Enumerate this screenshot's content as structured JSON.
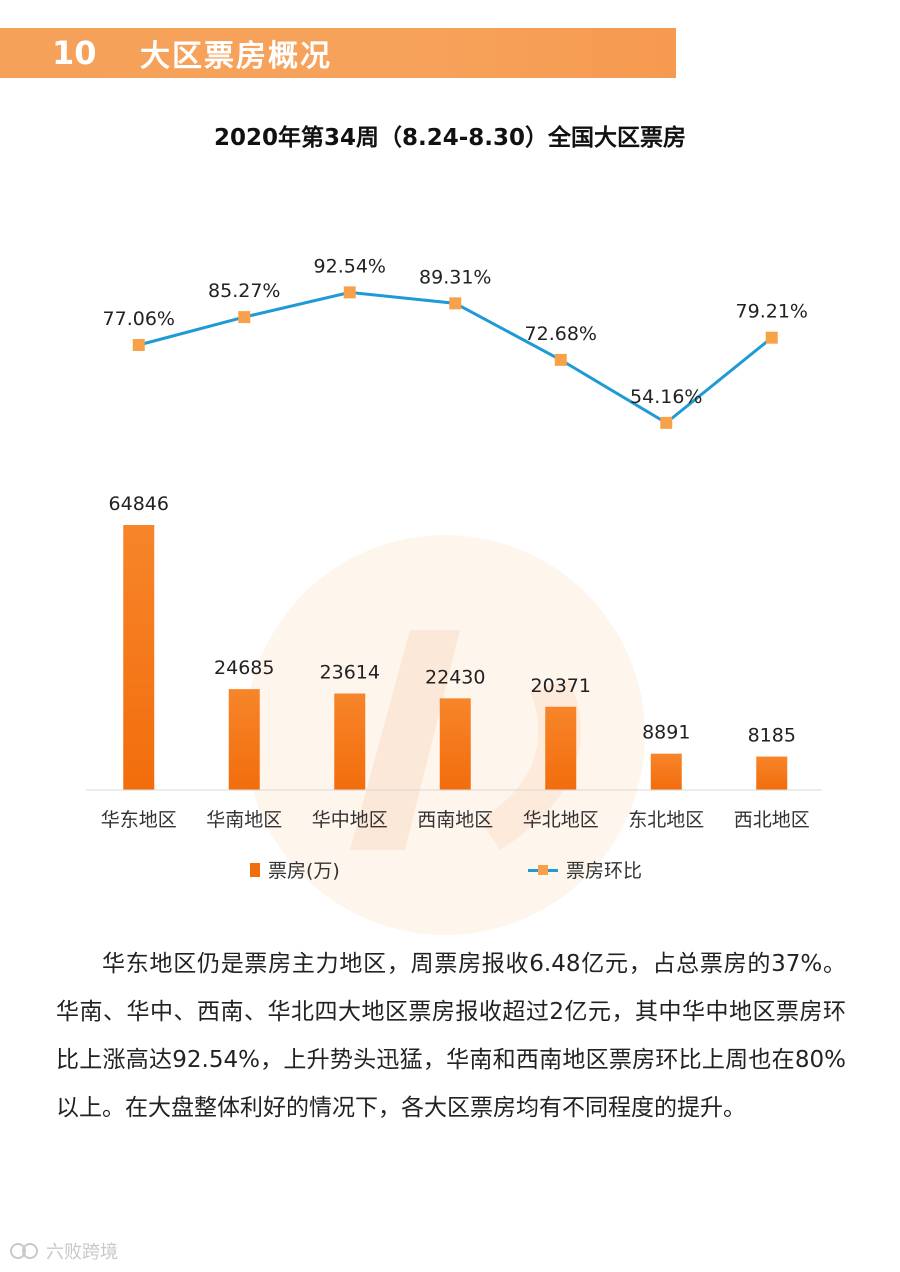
{
  "section": {
    "number": "10",
    "title": "大区票房概况"
  },
  "chart_title": "2020年第34周（8.24-8.30）全国大区票房",
  "colors": {
    "header": "#f7a25b",
    "bar": "#f26d0c",
    "bar_top": "#f7852a",
    "line": "#1e9ad6",
    "marker": "#f7a24a"
  },
  "chart_data": {
    "type": "bar+line",
    "title": "2020年第34周（8.24-8.30）全国大区票房",
    "categories": [
      "华东地区",
      "华南地区",
      "华中地区",
      "西南地区",
      "华北地区",
      "东北地区",
      "西北地区"
    ],
    "series": [
      {
        "name": "票房(万)",
        "type": "bar",
        "values": [
          64846,
          24685,
          23614,
          22430,
          20371,
          8891,
          8185
        ],
        "labels": [
          "64846",
          "24685",
          "23614",
          "22430",
          "20371",
          "8891",
          "8185"
        ]
      },
      {
        "name": "票房环比",
        "type": "line",
        "values": [
          77.06,
          85.27,
          92.54,
          89.31,
          72.68,
          54.16,
          79.21
        ],
        "labels": [
          "77.06%",
          "85.27%",
          "92.54%",
          "89.31%",
          "72.68%",
          "54.16%",
          "79.21%"
        ]
      }
    ],
    "legend": {
      "position": "bottom"
    },
    "grid": false
  },
  "body_text": "华东地区仍是票房主力地区，周票房报收6.48亿元，占总票房的37%。华南、华中、西南、华北四大地区票房报收超过2亿元，其中华中地区票房环比上涨高达92.54%，上升势头迅猛，华南和西南地区票房环比上周也在80%以上。在大盘整体利好的情况下，各大区票房均有不同程度的提升。",
  "footer": {
    "logo_text": "六败跨境"
  }
}
